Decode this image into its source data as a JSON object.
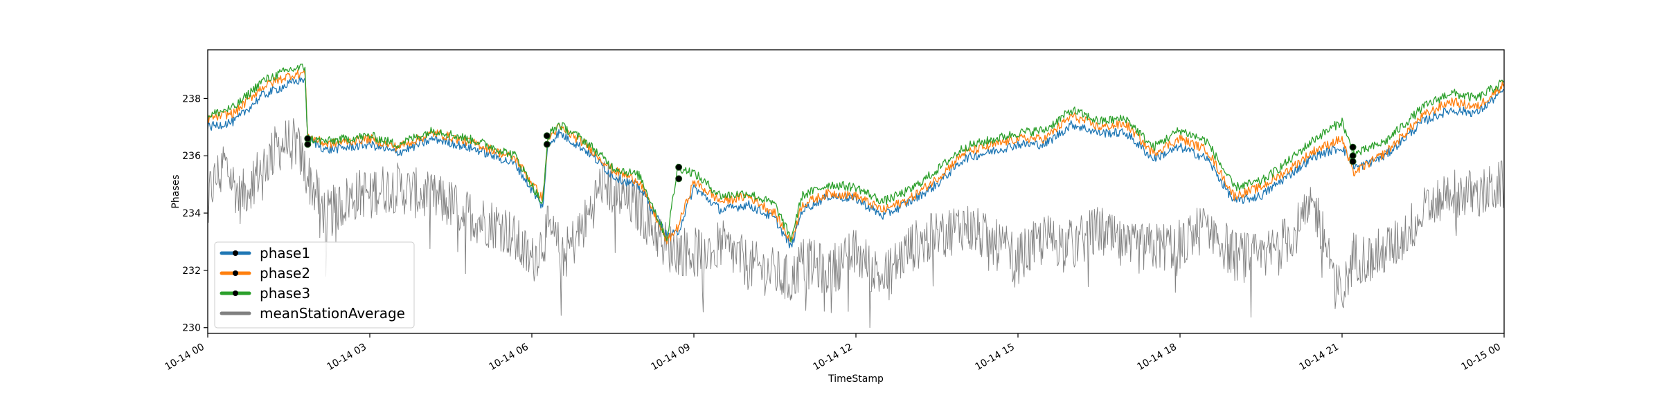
{
  "chart_data": {
    "type": "line",
    "xlabel": "TimeStamp",
    "ylabel": "Phases",
    "xlim": [
      "2023-10-14 00:00",
      "2023-10-15 00:00"
    ],
    "ylim": [
      229.8,
      239.7
    ],
    "x_ticks": [
      "10-14 00",
      "10-14 03",
      "10-14 06",
      "10-14 09",
      "10-14 12",
      "10-14 15",
      "10-14 18",
      "10-14 21",
      "10-15 00"
    ],
    "x_tick_hours": [
      0,
      3,
      6,
      9,
      12,
      15,
      18,
      21,
      24
    ],
    "y_ticks": [
      230,
      232,
      234,
      236,
      238
    ],
    "grid": false,
    "legend_position": "lower-left",
    "x_units": "hours since 10-14 00",
    "series": [
      {
        "name": "phase1",
        "color": "#1f77b4",
        "x": [
          0,
          0.5,
          1.0,
          1.5,
          1.8,
          1.85,
          2.2,
          3.0,
          3.5,
          4.2,
          5.0,
          5.7,
          6.2,
          6.3,
          6.5,
          7.0,
          7.5,
          8.0,
          8.5,
          8.7,
          9.0,
          9.5,
          10.0,
          10.5,
          10.8,
          11.0,
          11.5,
          12.0,
          12.5,
          13.0,
          13.5,
          14.0,
          15.0,
          15.5,
          16.0,
          16.5,
          17.0,
          17.5,
          18.0,
          18.5,
          19.0,
          19.5,
          20.0,
          20.5,
          21.0,
          21.2,
          21.3,
          21.8,
          22.5,
          23.0,
          23.5,
          24.0
        ],
        "y": [
          237.0,
          237.2,
          238.1,
          238.5,
          238.7,
          236.6,
          236.2,
          236.4,
          236.1,
          236.6,
          236.2,
          235.7,
          234.2,
          236.4,
          236.8,
          236.2,
          235.3,
          234.9,
          233.2,
          233.3,
          234.9,
          234.1,
          234.3,
          233.8,
          232.8,
          234.1,
          234.6,
          234.5,
          233.9,
          234.4,
          235.0,
          235.9,
          236.4,
          236.4,
          237.1,
          236.8,
          236.8,
          235.9,
          236.3,
          235.9,
          234.4,
          234.6,
          235.3,
          236.0,
          236.3,
          235.7,
          235.6,
          236.0,
          237.2,
          237.6,
          237.5,
          238.3
        ]
      },
      {
        "name": "phase2",
        "color": "#ff7f0e",
        "x": [
          0,
          0.5,
          1.0,
          1.5,
          1.8,
          1.85,
          2.2,
          3.0,
          3.5,
          4.2,
          5.0,
          5.7,
          6.2,
          6.3,
          6.5,
          7.0,
          7.5,
          8.0,
          8.5,
          8.7,
          9.0,
          9.5,
          10.0,
          10.5,
          10.8,
          11.0,
          11.5,
          12.0,
          12.5,
          13.0,
          13.5,
          14.0,
          15.0,
          15.5,
          16.0,
          16.5,
          17.0,
          17.5,
          18.0,
          18.5,
          19.0,
          19.5,
          20.0,
          20.5,
          21.0,
          21.2,
          21.3,
          21.8,
          22.5,
          23.0,
          23.5,
          24.0
        ],
        "y": [
          237.3,
          237.5,
          238.4,
          238.8,
          238.9,
          236.7,
          236.4,
          236.6,
          236.3,
          236.8,
          236.4,
          235.9,
          234.5,
          236.6,
          237.0,
          236.4,
          235.5,
          235.1,
          233.0,
          233.5,
          235.1,
          234.4,
          234.6,
          234.0,
          233.0,
          234.3,
          234.7,
          234.6,
          234.1,
          234.5,
          235.2,
          236.1,
          236.6,
          236.6,
          237.4,
          237.0,
          237.1,
          236.1,
          236.6,
          236.2,
          234.6,
          234.9,
          235.5,
          236.2,
          236.6,
          235.4,
          235.5,
          236.1,
          237.4,
          237.9,
          237.7,
          238.5
        ]
      },
      {
        "name": "phase3",
        "color": "#2ca02c",
        "x": [
          0,
          0.5,
          1.0,
          1.5,
          1.8,
          1.85,
          2.2,
          3.0,
          3.5,
          4.2,
          5.0,
          5.7,
          6.2,
          6.3,
          6.5,
          7.0,
          7.5,
          8.0,
          8.5,
          8.7,
          9.0,
          9.5,
          10.0,
          10.5,
          10.8,
          11.0,
          11.5,
          12.0,
          12.5,
          13.0,
          13.5,
          14.0,
          15.0,
          15.5,
          16.0,
          16.5,
          17.0,
          17.5,
          18.0,
          18.5,
          19.0,
          19.5,
          20.0,
          20.5,
          21.0,
          21.2,
          21.3,
          21.8,
          22.5,
          23.0,
          23.5,
          24.0
        ],
        "y": [
          237.4,
          237.7,
          238.6,
          239.0,
          239.1,
          236.6,
          236.5,
          236.7,
          236.4,
          236.9,
          236.5,
          236.0,
          234.3,
          236.7,
          237.1,
          236.5,
          235.6,
          235.3,
          233.1,
          235.6,
          235.4,
          234.6,
          234.7,
          234.3,
          233.1,
          234.6,
          235.0,
          234.9,
          234.4,
          234.8,
          235.5,
          236.3,
          236.8,
          236.9,
          237.6,
          237.2,
          237.3,
          236.3,
          236.9,
          236.5,
          234.9,
          235.1,
          235.8,
          236.6,
          237.2,
          236.1,
          236.1,
          236.5,
          237.7,
          238.2,
          238.0,
          238.6
        ]
      },
      {
        "name": "meanStationAverage",
        "color": "#808080",
        "x": [
          0,
          0.3,
          0.6,
          1.0,
          1.3,
          1.6,
          1.85,
          2.2,
          2.6,
          3.0,
          3.5,
          4.0,
          4.5,
          5.0,
          5.5,
          6.0,
          6.3,
          6.6,
          7.0,
          7.3,
          7.6,
          8.0,
          8.5,
          9.0,
          9.5,
          10.0,
          10.5,
          10.8,
          11.0,
          11.5,
          12.0,
          12.5,
          13.0,
          13.5,
          14.0,
          14.5,
          15.0,
          15.5,
          16.0,
          16.5,
          17.0,
          17.5,
          18.0,
          18.5,
          19.0,
          19.5,
          20.0,
          20.5,
          21.0,
          21.2,
          21.5,
          22.0,
          22.5,
          23.0,
          23.5,
          24.0
        ],
        "y": [
          234.6,
          235.8,
          234.5,
          235.6,
          236.3,
          236.6,
          235.3,
          233.9,
          234.5,
          234.8,
          234.9,
          234.6,
          234.3,
          233.8,
          233.5,
          232.3,
          233.4,
          232.5,
          233.7,
          235.1,
          234.6,
          234.1,
          232.8,
          232.6,
          232.9,
          232.2,
          231.9,
          231.6,
          232.3,
          232.0,
          232.6,
          231.7,
          232.8,
          233.2,
          233.6,
          233.0,
          232.4,
          233.1,
          232.9,
          233.4,
          232.7,
          232.8,
          232.9,
          233.6,
          232.5,
          232.4,
          233.1,
          234.2,
          231.0,
          232.5,
          232.4,
          232.9,
          234.0,
          234.8,
          234.6,
          235.0
        ]
      }
    ],
    "markers": [
      {
        "x": 1.85,
        "y": 236.6
      },
      {
        "x": 1.85,
        "y": 236.4
      },
      {
        "x": 6.28,
        "y": 236.7
      },
      {
        "x": 6.28,
        "y": 236.4
      },
      {
        "x": 8.72,
        "y": 235.6
      },
      {
        "x": 8.72,
        "y": 235.2
      },
      {
        "x": 21.2,
        "y": 236.3
      },
      {
        "x": 21.2,
        "y": 236.0
      },
      {
        "x": 21.2,
        "y": 235.8
      }
    ]
  }
}
